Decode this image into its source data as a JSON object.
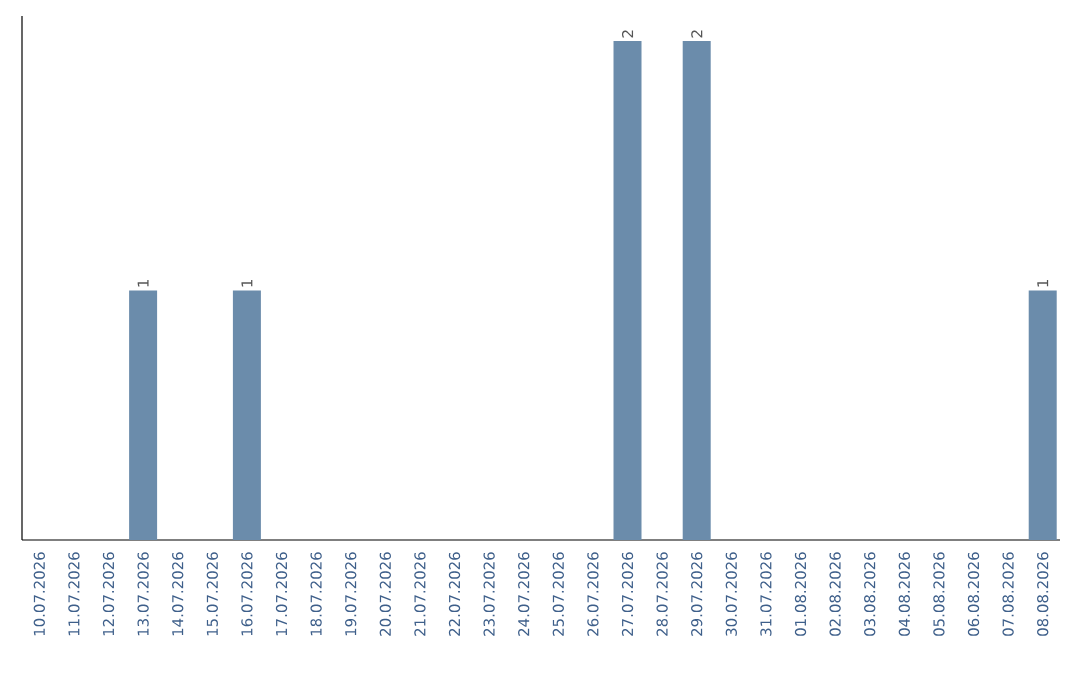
{
  "chart_data": {
    "type": "bar",
    "categories": [
      "10.07.2026",
      "11.07.2026",
      "12.07.2026",
      "13.07.2026",
      "14.07.2026",
      "15.07.2026",
      "16.07.2026",
      "17.07.2026",
      "18.07.2026",
      "19.07.2026",
      "20.07.2026",
      "21.07.2026",
      "22.07.2026",
      "23.07.2026",
      "24.07.2026",
      "25.07.2026",
      "26.07.2026",
      "27.07.2026",
      "28.07.2026",
      "29.07.2026",
      "30.07.2026",
      "31.07.2026",
      "01.08.2026",
      "02.08.2026",
      "03.08.2026",
      "04.08.2026",
      "05.08.2026",
      "06.08.2026",
      "07.08.2026",
      "08.08.2026"
    ],
    "values": [
      0,
      0,
      0,
      1,
      0,
      0,
      1,
      0,
      0,
      0,
      0,
      0,
      0,
      0,
      0,
      0,
      0,
      2,
      0,
      2,
      0,
      0,
      0,
      0,
      0,
      0,
      0,
      0,
      0,
      1
    ],
    "value_labels": [
      null,
      null,
      null,
      "1",
      null,
      null,
      "1",
      null,
      null,
      null,
      null,
      null,
      null,
      null,
      null,
      null,
      null,
      "2",
      null,
      "2",
      null,
      null,
      null,
      null,
      null,
      null,
      null,
      null,
      null,
      "1"
    ],
    "color": "#6b8cab",
    "tick_labels": "x",
    "grid": false
  }
}
